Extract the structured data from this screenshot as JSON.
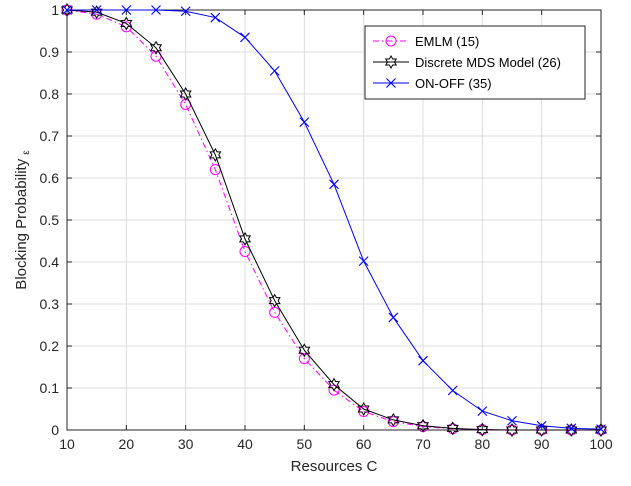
{
  "chart_data": {
    "type": "line",
    "xlabel": "Resources C",
    "ylabel": "Blocking Probability",
    "ylabel_subscript": "ε",
    "xlim": [
      10,
      100
    ],
    "ylim": [
      0,
      1
    ],
    "xticks": [
      10,
      20,
      30,
      40,
      50,
      60,
      70,
      80,
      90,
      100
    ],
    "yticks": [
      0,
      0.1,
      0.2,
      0.3,
      0.4,
      0.5,
      0.6,
      0.7,
      0.8,
      0.9,
      1
    ],
    "xtick_labels": [
      "10",
      "20",
      "30",
      "40",
      "50",
      "60",
      "70",
      "80",
      "90",
      "100"
    ],
    "ytick_labels": [
      "0",
      "0.1",
      "0.2",
      "0.3",
      "0.4",
      "0.5",
      "0.6",
      "0.7",
      "0.8",
      "0.9",
      "1"
    ],
    "grid": true,
    "legend_position": "top-right",
    "x": [
      10,
      15,
      20,
      25,
      30,
      35,
      40,
      45,
      50,
      55,
      60,
      65,
      70,
      75,
      80,
      85,
      90,
      95,
      100
    ],
    "series": [
      {
        "name": "EMLM (15)",
        "color": "#ff00ff",
        "line_style": "dash-dot",
        "marker": "circle",
        "values": [
          1.0,
          0.99,
          0.96,
          0.89,
          0.775,
          0.62,
          0.425,
          0.28,
          0.17,
          0.095,
          0.044,
          0.02,
          0.008,
          0.003,
          0.001,
          0.0,
          0.0,
          0.0,
          0.0
        ]
      },
      {
        "name": "Discrete MDS Model (26)",
        "color": "#000000",
        "line_style": "solid",
        "marker": "hexagram",
        "values": [
          1.0,
          0.995,
          0.968,
          0.91,
          0.8,
          0.655,
          0.455,
          0.308,
          0.19,
          0.108,
          0.05,
          0.024,
          0.01,
          0.004,
          0.001,
          0.0,
          0.0,
          0.0,
          0.0
        ]
      },
      {
        "name": "ON-OFF (35)",
        "color": "#0000ff",
        "line_style": "solid",
        "marker": "x",
        "values": [
          1.0,
          1.0,
          1.0,
          1.0,
          0.997,
          0.982,
          0.935,
          0.855,
          0.733,
          0.585,
          0.402,
          0.268,
          0.165,
          0.094,
          0.045,
          0.022,
          0.01,
          0.004,
          0.002
        ]
      }
    ]
  }
}
